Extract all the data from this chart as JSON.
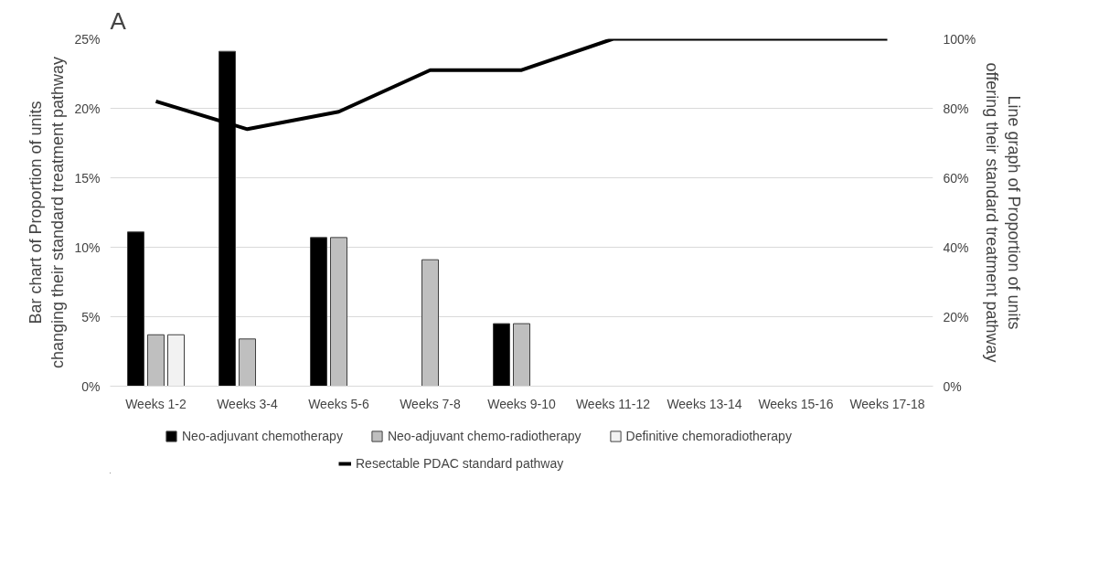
{
  "chart_data": {
    "type": "bar",
    "title": "A",
    "ylabel": "Bar chart of Proportion of units changing their standard treatment pathway",
    "y2label": "Line graph of Proportion of units offering their standard treatment pathway",
    "categories": [
      "Weeks 1-2",
      "Weeks 3-4",
      "Weeks 5-6",
      "Weeks 7-8",
      "Weeks 9-10",
      "Weeks 11-12",
      "Weeks 13-14",
      "Weeks 15-16",
      "Weeks 17-18"
    ],
    "series": [
      {
        "name": "Neo-adjuvant chemotherapy",
        "color": "#000000",
        "values": [
          11.1,
          24.1,
          10.7,
          0,
          4.5,
          0,
          0,
          0,
          0
        ]
      },
      {
        "name": "Neo-adjuvant chemo-radiotherapy",
        "color": "#bfbfbf",
        "values": [
          3.7,
          3.4,
          10.7,
          9.1,
          4.5,
          0,
          0,
          0,
          0
        ]
      },
      {
        "name": "Definitive chemoradiotherapy",
        "color": "#f2f2f2",
        "values": [
          3.7,
          0,
          0,
          0,
          0,
          0,
          0,
          0,
          0
        ]
      },
      {
        "name": "Resectable PDAC standard pathway",
        "type": "line",
        "axis": "y2",
        "color": "#000000",
        "values": [
          82,
          74,
          79,
          91,
          91,
          100,
          100,
          100,
          100
        ]
      }
    ],
    "ylim": [
      0,
      25
    ],
    "yticks": [
      {
        "value": 0,
        "label": "0%"
      },
      {
        "value": 5,
        "label": "5%"
      },
      {
        "value": 10,
        "label": "10%"
      },
      {
        "value": 15,
        "label": "15%"
      },
      {
        "value": 20,
        "label": "20%"
      },
      {
        "value": 25,
        "label": "25%"
      }
    ],
    "y2lim": [
      0,
      100
    ],
    "y2ticks": [
      {
        "value": 0,
        "label": "0%"
      },
      {
        "value": 20,
        "label": "20%"
      },
      {
        "value": 40,
        "label": "40%"
      },
      {
        "value": 60,
        "label": "60%"
      },
      {
        "value": 80,
        "label": "80%"
      },
      {
        "value": 100,
        "label": "100%"
      }
    ],
    "grid": "y",
    "legend": "bottom"
  }
}
